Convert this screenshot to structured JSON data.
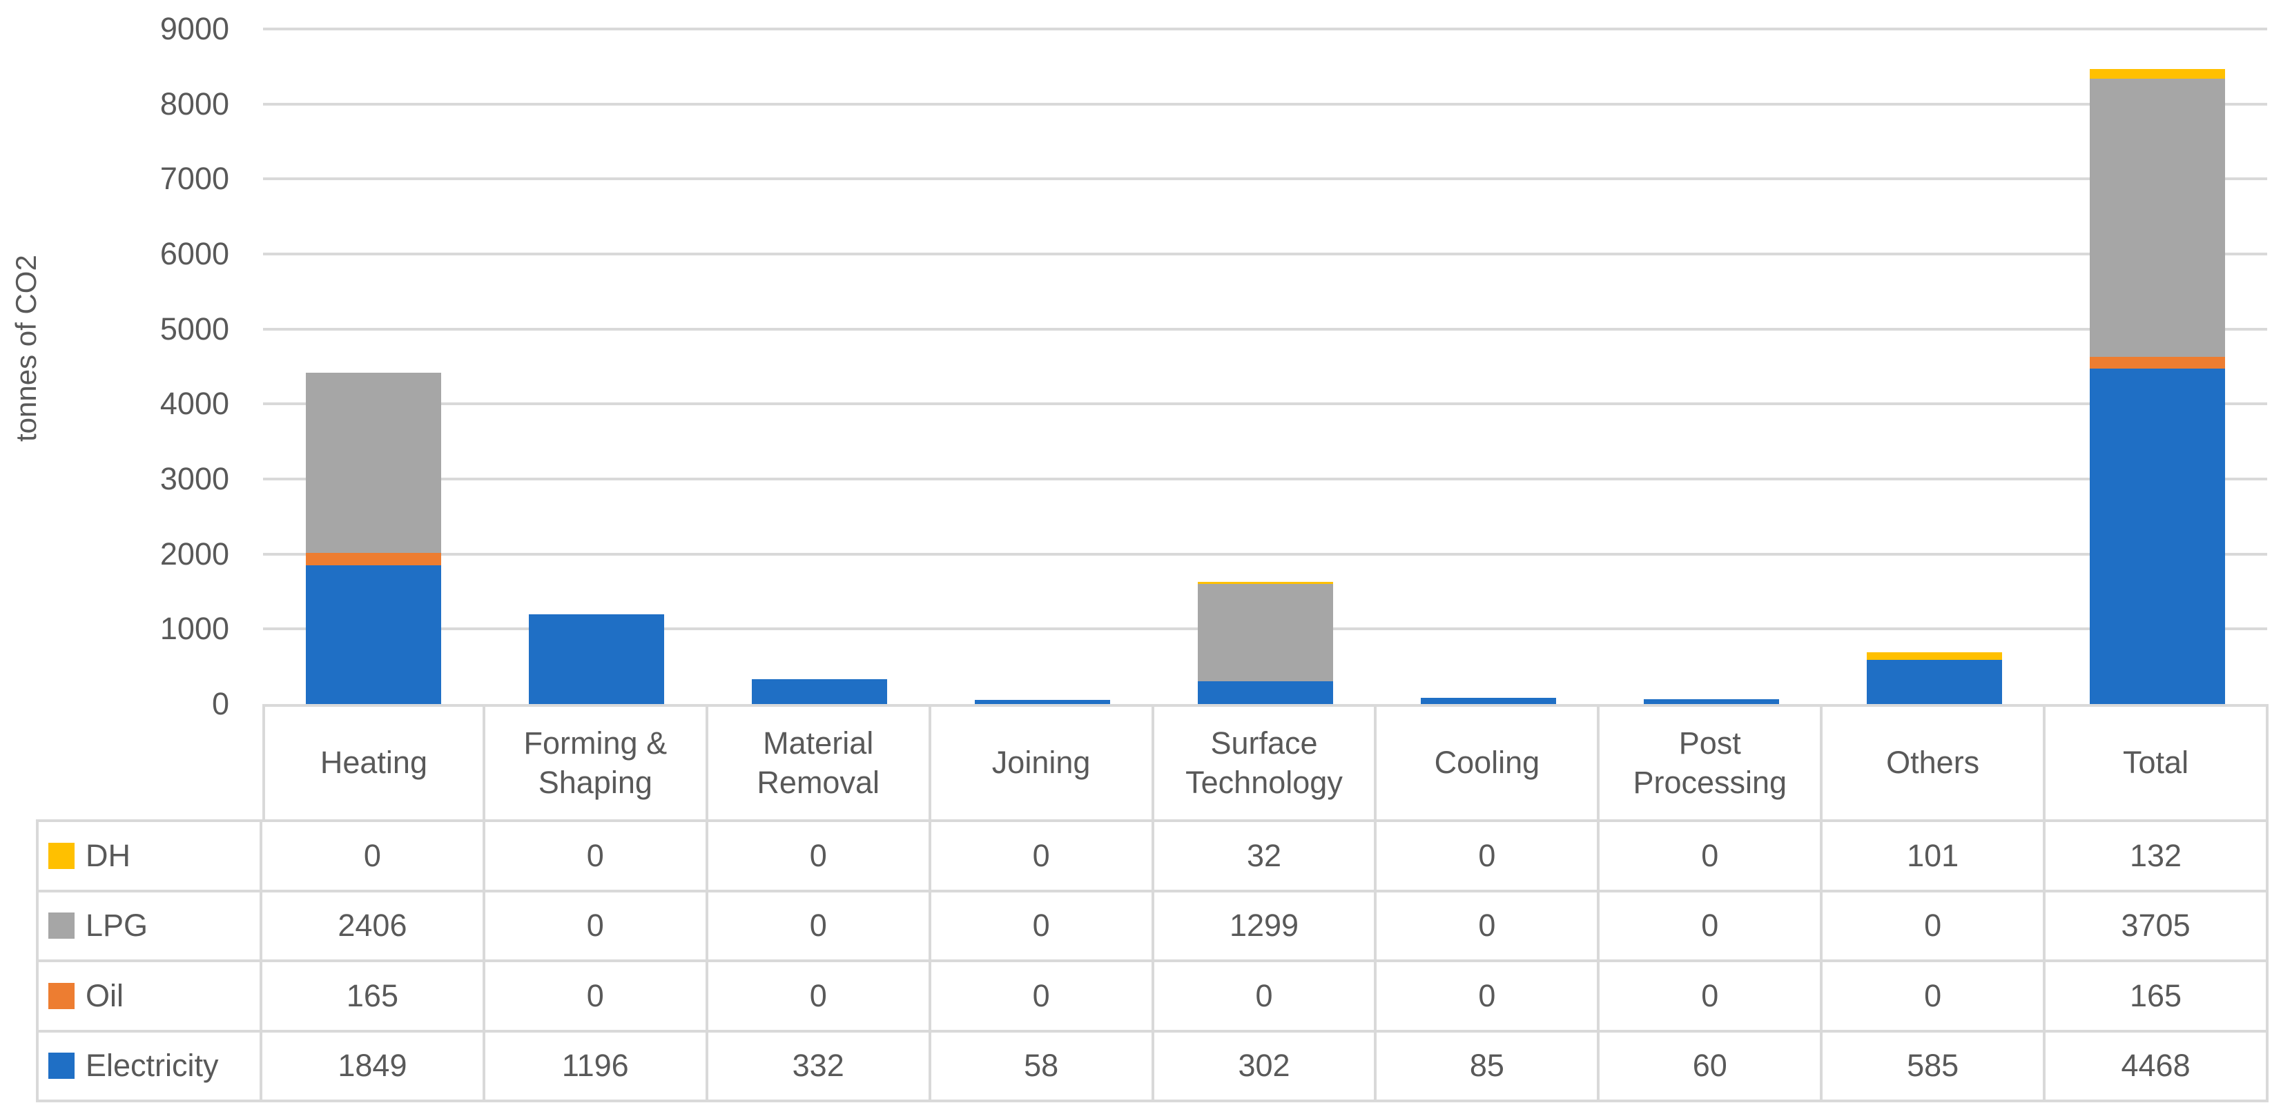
{
  "chart_data": {
    "type": "bar",
    "stacked": true,
    "title": "",
    "xlabel": "",
    "ylabel": "tonnes of CO2",
    "ylim": [
      0,
      9000
    ],
    "y_tick_step": 1000,
    "y_tick_labels": [
      "0",
      "1000",
      "2000",
      "3000",
      "4000",
      "5000",
      "6000",
      "7000",
      "8000",
      "9000"
    ],
    "grid": true,
    "legend_position": "table-left-keys",
    "categories": [
      "Heating",
      "Forming & Shaping",
      "Material Removal",
      "Joining",
      "Surface Technology",
      "Cooling",
      "Post Processing",
      "Others",
      "Total"
    ],
    "series": [
      {
        "name": "DH",
        "color": "#FFC000",
        "values": [
          0,
          0,
          0,
          0,
          32,
          0,
          0,
          101,
          132
        ]
      },
      {
        "name": "LPG",
        "color": "#A6A6A6",
        "values": [
          2406,
          0,
          0,
          0,
          1299,
          0,
          0,
          0,
          3705
        ]
      },
      {
        "name": "Oil",
        "color": "#ED7D31",
        "values": [
          165,
          0,
          0,
          0,
          0,
          0,
          0,
          0,
          165
        ]
      },
      {
        "name": "Electricity",
        "color": "#1F6FC5",
        "values": [
          1849,
          1196,
          332,
          58,
          302,
          85,
          60,
          585,
          4468
        ]
      }
    ],
    "stack_order_bottom_to_top": [
      "Electricity",
      "Oil",
      "LPG",
      "DH"
    ]
  },
  "style_colors": {
    "grid_and_border": "#D9D9D9",
    "text": "#595959",
    "background": "#FFFFFF"
  }
}
